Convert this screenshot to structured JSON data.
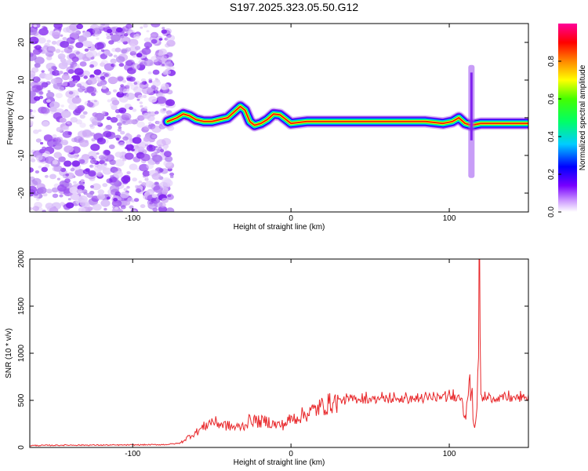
{
  "title": "S197.2025.323.05.50.G12",
  "chart_data": [
    {
      "type": "heatmap",
      "name": "spectrogram",
      "xlabel": "Height of straight line (km)",
      "ylabel": "Frequency (Hz)",
      "xlim": [
        -165,
        150
      ],
      "ylim": [
        -25,
        25
      ],
      "xticks": [
        -100,
        0,
        100
      ],
      "xtick_labels": [
        "-100",
        "0",
        "100"
      ],
      "yticks": [
        -20,
        -10,
        0,
        10,
        20
      ],
      "ytick_labels": [
        "-20",
        "-10",
        "0",
        "10",
        "20"
      ],
      "noise_region_x": [
        -165,
        -75
      ],
      "track": [
        {
          "x": -78,
          "y": -1
        },
        {
          "x": -72,
          "y": 0
        },
        {
          "x": -68,
          "y": 1
        },
        {
          "x": -64,
          "y": 0.5
        },
        {
          "x": -60,
          "y": -0.5
        },
        {
          "x": -55,
          "y": -1
        },
        {
          "x": -50,
          "y": -1
        },
        {
          "x": -45,
          "y": -0.5
        },
        {
          "x": -40,
          "y": 0
        },
        {
          "x": -36,
          "y": 1.5
        },
        {
          "x": -32,
          "y": 3
        },
        {
          "x": -29,
          "y": 2
        },
        {
          "x": -26,
          "y": -1
        },
        {
          "x": -23,
          "y": -2
        },
        {
          "x": -19,
          "y": -1.5
        },
        {
          "x": -15,
          "y": -0.5
        },
        {
          "x": -11,
          "y": 1
        },
        {
          "x": -7,
          "y": 0.8
        },
        {
          "x": -3,
          "y": -0.5
        },
        {
          "x": 0,
          "y": -1.5
        },
        {
          "x": 10,
          "y": -1
        },
        {
          "x": 30,
          "y": -1
        },
        {
          "x": 60,
          "y": -1
        },
        {
          "x": 85,
          "y": -1
        },
        {
          "x": 96,
          "y": -1.5
        },
        {
          "x": 102,
          "y": -1
        },
        {
          "x": 106,
          "y": 0
        },
        {
          "x": 110,
          "y": -1.5
        },
        {
          "x": 114,
          "y": -2
        },
        {
          "x": 120,
          "y": -1.5
        },
        {
          "x": 135,
          "y": -1.5
        },
        {
          "x": 150,
          "y": -1.5
        }
      ],
      "colorbar": {
        "label": "Normalized spectral amplitude",
        "range": [
          0,
          1
        ],
        "ticks": [
          0,
          0.2,
          0.4,
          0.6,
          0.8
        ],
        "tick_labels": [
          "0.0",
          "0.2",
          "0.4",
          "0.6",
          "0.8"
        ],
        "colors": [
          "#ffffff",
          "#9933ff",
          "#0000ff",
          "#00ccff",
          "#00ff66",
          "#33ff00",
          "#ffff00",
          "#ff8800",
          "#ff0000",
          "#ff0099"
        ]
      }
    },
    {
      "type": "line",
      "name": "snr",
      "xlabel": "Height of straight line (km)",
      "ylabel": "SNR (10 * v/v)",
      "xlim": [
        -165,
        150
      ],
      "ylim": [
        0,
        2000
      ],
      "xticks": [
        -100,
        0,
        100
      ],
      "xtick_labels": [
        "-100",
        "0",
        "100"
      ],
      "yticks": [
        0,
        500,
        1000,
        1500,
        2000
      ],
      "ytick_labels": [
        "0",
        "500",
        "1000",
        "1500",
        "2000"
      ],
      "color": "#e8272a",
      "x": [
        -165,
        -140,
        -110,
        -80,
        -70,
        -65,
        -60,
        -55,
        -50,
        -45,
        -40,
        -35,
        -30,
        -25,
        -20,
        -15,
        -10,
        -5,
        0,
        5,
        10,
        15,
        20,
        25,
        30,
        35,
        40,
        50,
        60,
        70,
        80,
        90,
        100,
        104,
        108,
        110,
        112,
        114,
        116,
        118,
        119,
        120,
        122,
        125,
        130,
        140,
        150
      ],
      "values": [
        20,
        25,
        25,
        30,
        45,
        110,
        160,
        220,
        280,
        250,
        230,
        210,
        230,
        300,
        270,
        280,
        240,
        240,
        300,
        330,
        360,
        400,
        440,
        470,
        490,
        500,
        510,
        510,
        510,
        510,
        510,
        520,
        530,
        540,
        520,
        380,
        640,
        560,
        200,
        600,
        2000,
        520,
        520,
        520,
        520,
        520,
        520
      ]
    }
  ]
}
